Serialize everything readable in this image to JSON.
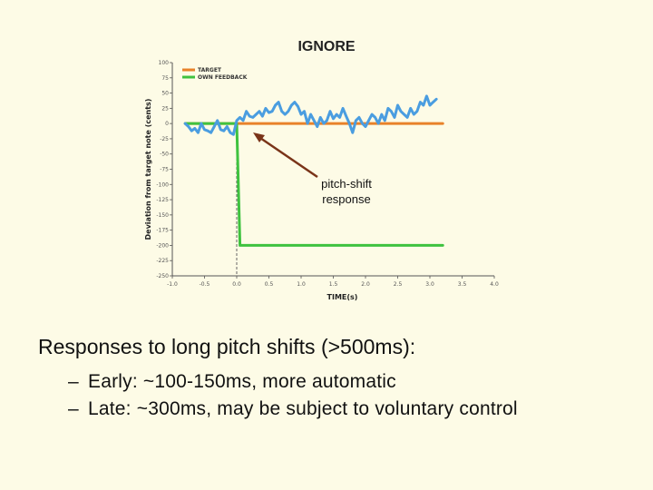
{
  "slide": {
    "title": "IGNORE",
    "annotation_line1": "pitch-shift",
    "annotation_line2": "response",
    "heading": "Responses to long pitch shifts (>500ms):",
    "bullets": [
      {
        "marker": "–",
        "text": "Early: ~100-150ms, more automatic"
      },
      {
        "marker": "–",
        "text": "Late: ~300ms, may be subject to voluntary control"
      }
    ]
  },
  "chart_data": {
    "type": "line",
    "xlabel": "TIME(s)",
    "ylabel": "Deviation from target note (cents)",
    "xlim": [
      -1.0,
      4.0
    ],
    "ylim": [
      -250,
      100
    ],
    "xticks": [
      "-1.0",
      "-0.5",
      "0.0",
      "0.5",
      "1.0",
      "1.5",
      "2.0",
      "2.5",
      "3.0",
      "3.5",
      "4.0"
    ],
    "yticks": [
      "100",
      "75",
      "50",
      "25",
      "0",
      "-25",
      "-50",
      "-75",
      "-100",
      "-125",
      "-150",
      "-175",
      "-200",
      "-225",
      "-250"
    ],
    "legend_position": "top-left",
    "series": [
      {
        "name": "TARGET",
        "color": "#e8822a",
        "x": [
          -0.8,
          3.2
        ],
        "y": [
          0,
          0
        ]
      },
      {
        "name": "OWN FEEDBACK",
        "color": "#3fc23f",
        "x": [
          -0.8,
          0.0,
          0.05,
          3.2
        ],
        "y": [
          0,
          0,
          -200,
          -200
        ]
      },
      {
        "name": "",
        "color": "#4a9de0",
        "x": [
          -0.8,
          -0.75,
          -0.7,
          -0.65,
          -0.6,
          -0.55,
          -0.5,
          -0.45,
          -0.4,
          -0.35,
          -0.3,
          -0.25,
          -0.2,
          -0.15,
          -0.1,
          -0.05,
          0.0,
          0.05,
          0.1,
          0.15,
          0.2,
          0.25,
          0.3,
          0.35,
          0.4,
          0.45,
          0.5,
          0.55,
          0.6,
          0.65,
          0.7,
          0.75,
          0.8,
          0.85,
          0.9,
          0.95,
          1.0,
          1.05,
          1.1,
          1.15,
          1.2,
          1.25,
          1.3,
          1.35,
          1.4,
          1.45,
          1.5,
          1.55,
          1.6,
          1.65,
          1.7,
          1.75,
          1.8,
          1.85,
          1.9,
          1.95,
          2.0,
          2.05,
          2.1,
          2.15,
          2.2,
          2.25,
          2.3,
          2.35,
          2.4,
          2.45,
          2.5,
          2.55,
          2.6,
          2.65,
          2.7,
          2.75,
          2.8,
          2.85,
          2.9,
          2.95,
          3.0,
          3.05,
          3.1
        ],
        "y": [
          0,
          -5,
          -12,
          -8,
          -15,
          0,
          -10,
          -12,
          -15,
          -5,
          5,
          -10,
          -12,
          -5,
          -15,
          -18,
          5,
          10,
          5,
          20,
          12,
          10,
          15,
          20,
          12,
          25,
          18,
          20,
          30,
          35,
          20,
          15,
          20,
          30,
          35,
          28,
          15,
          20,
          0,
          15,
          5,
          -5,
          10,
          0,
          5,
          20,
          8,
          15,
          10,
          25,
          12,
          0,
          -15,
          5,
          10,
          0,
          -5,
          5,
          15,
          10,
          0,
          15,
          5,
          25,
          20,
          10,
          30,
          20,
          15,
          10,
          25,
          15,
          20,
          35,
          30,
          45,
          30,
          35,
          40
        ]
      }
    ]
  }
}
